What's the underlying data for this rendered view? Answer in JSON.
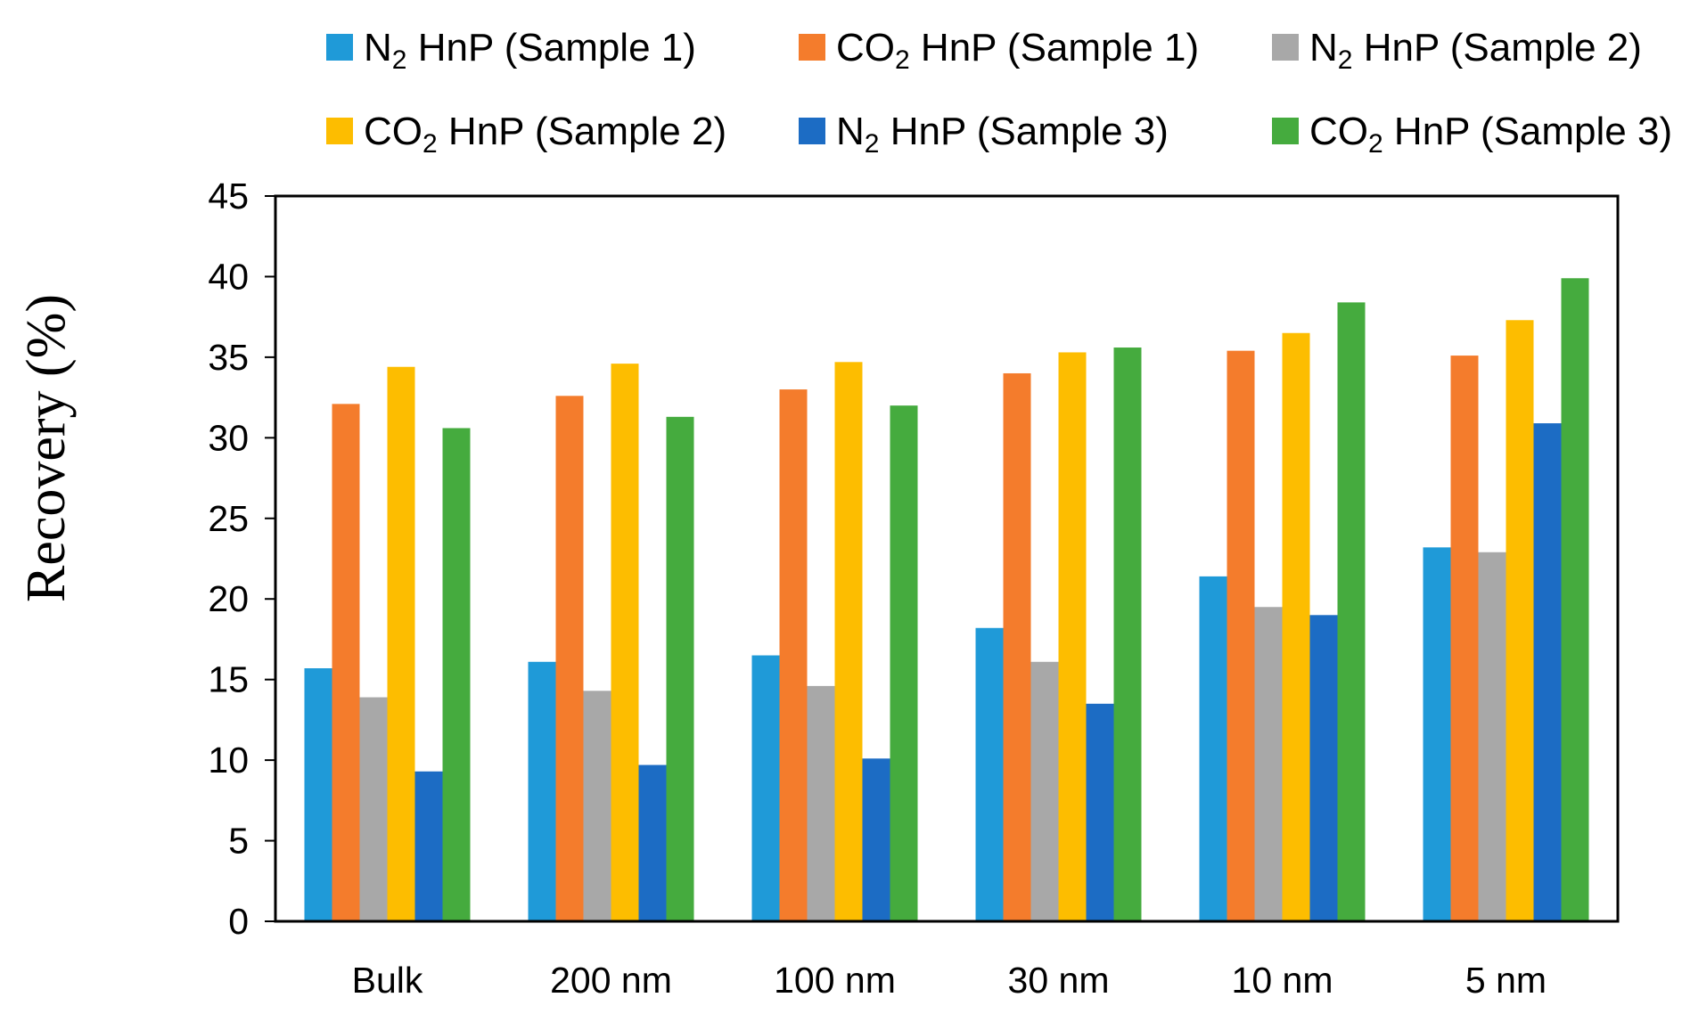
{
  "chart_data": {
    "type": "bar",
    "title": "",
    "xlabel": "",
    "ylabel": "Recovery (%)",
    "ylim": [
      0,
      45
    ],
    "yticks": [
      0,
      5,
      10,
      15,
      20,
      25,
      30,
      35,
      40,
      45
    ],
    "grid": false,
    "legend_position": "top",
    "categories": [
      "Bulk",
      "200 nm",
      "100 nm",
      "30 nm",
      "10 nm",
      "5 nm"
    ],
    "series": [
      {
        "name": "N2 HnP (Sample 1)",
        "gas": "N",
        "sub": "2",
        "rest": " HnP (Sample 1)",
        "color": "#1f9ad8",
        "values": [
          15.7,
          16.1,
          16.5,
          18.2,
          21.4,
          23.2
        ]
      },
      {
        "name": "CO2 HnP (Sample 1)",
        "gas": "CO",
        "sub": "2",
        "rest": " HnP (Sample 1)",
        "color": "#f47c2c",
        "values": [
          32.1,
          32.6,
          33.0,
          34.0,
          35.4,
          35.1
        ]
      },
      {
        "name": "N2 HnP (Sample 2)",
        "gas": "N",
        "sub": "2",
        "rest": " HnP (Sample 2)",
        "color": "#a8a8a8",
        "values": [
          13.9,
          14.3,
          14.6,
          16.1,
          19.5,
          22.9
        ]
      },
      {
        "name": "CO2 HnP (Sample 2)",
        "gas": "CO",
        "sub": "2",
        "rest": " HnP (Sample 2)",
        "color": "#fdbd00",
        "values": [
          34.4,
          34.6,
          34.7,
          35.3,
          36.5,
          37.3
        ]
      },
      {
        "name": "N2 HnP (Sample 3)",
        "gas": "N",
        "sub": "2",
        "rest": " HnP (Sample 3)",
        "color": "#1c6cc4",
        "values": [
          9.3,
          9.7,
          10.1,
          13.5,
          19.0,
          30.9
        ]
      },
      {
        "name": "CO2 HnP (Sample 3)",
        "gas": "CO",
        "sub": "2",
        "rest": " HnP (Sample 3)",
        "color": "#45ab3e",
        "values": [
          30.6,
          31.3,
          32.0,
          35.6,
          38.4,
          39.9
        ]
      }
    ]
  }
}
